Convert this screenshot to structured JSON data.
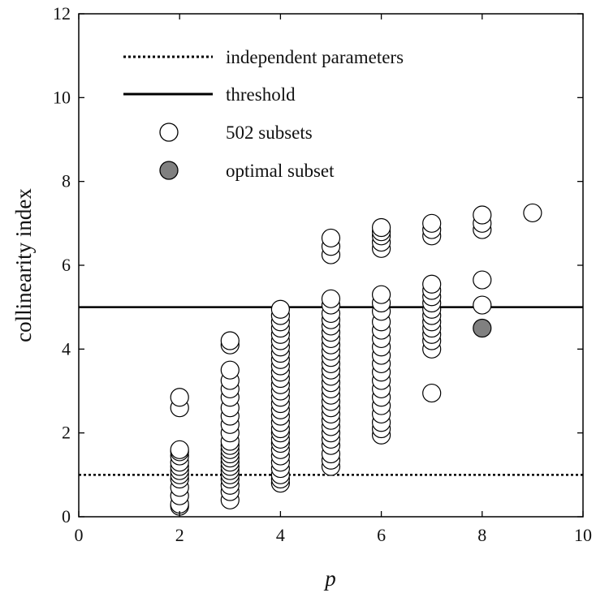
{
  "chart_data": {
    "type": "scatter",
    "xlabel": "p",
    "ylabel": "collinearity index",
    "xlim": [
      0,
      10
    ],
    "ylim": [
      0,
      12
    ],
    "xticks": [
      0,
      2,
      4,
      6,
      8,
      10
    ],
    "yticks": [
      0,
      2,
      4,
      6,
      8,
      10,
      12
    ],
    "legend_position": "top-left",
    "grid": false,
    "reference_lines": [
      {
        "name": "independent parameters",
        "y": 1,
        "style": "dotted"
      },
      {
        "name": "threshold",
        "y": 5,
        "style": "solid"
      }
    ],
    "series": [
      {
        "name": "502 subsets",
        "color": "#ffffff",
        "points": [
          [
            2,
            0.25
          ],
          [
            2,
            0.3
          ],
          [
            2,
            0.5
          ],
          [
            2,
            0.7
          ],
          [
            2,
            0.9
          ],
          [
            2,
            1.0
          ],
          [
            2,
            1.1
          ],
          [
            2,
            1.2
          ],
          [
            2,
            1.3
          ],
          [
            2,
            1.45
          ],
          [
            2,
            1.55
          ],
          [
            2,
            1.6
          ],
          [
            2,
            2.6
          ],
          [
            2,
            2.85
          ],
          [
            3,
            0.4
          ],
          [
            3,
            0.6
          ],
          [
            3,
            0.75
          ],
          [
            3,
            0.9
          ],
          [
            3,
            1.0
          ],
          [
            3,
            1.1
          ],
          [
            3,
            1.2
          ],
          [
            3,
            1.3
          ],
          [
            3,
            1.4
          ],
          [
            3,
            1.5
          ],
          [
            3,
            1.6
          ],
          [
            3,
            1.7
          ],
          [
            3,
            1.8
          ],
          [
            3,
            2.0
          ],
          [
            3,
            2.2
          ],
          [
            3,
            2.4
          ],
          [
            3,
            2.6
          ],
          [
            3,
            2.85
          ],
          [
            3,
            3.05
          ],
          [
            3,
            3.25
          ],
          [
            3,
            3.5
          ],
          [
            3,
            4.1
          ],
          [
            3,
            4.2
          ],
          [
            4,
            0.8
          ],
          [
            4,
            0.9
          ],
          [
            4,
            1.0
          ],
          [
            4,
            1.15
          ],
          [
            4,
            1.3
          ],
          [
            4,
            1.45
          ],
          [
            4,
            1.6
          ],
          [
            4,
            1.75
          ],
          [
            4,
            1.85
          ],
          [
            4,
            2.0
          ],
          [
            4,
            2.1
          ],
          [
            4,
            2.25
          ],
          [
            4,
            2.4
          ],
          [
            4,
            2.55
          ],
          [
            4,
            2.7
          ],
          [
            4,
            2.85
          ],
          [
            4,
            3.0
          ],
          [
            4,
            3.15
          ],
          [
            4,
            3.3
          ],
          [
            4,
            3.45
          ],
          [
            4,
            3.6
          ],
          [
            4,
            3.75
          ],
          [
            4,
            3.9
          ],
          [
            4,
            4.05
          ],
          [
            4,
            4.2
          ],
          [
            4,
            4.35
          ],
          [
            4,
            4.5
          ],
          [
            4,
            4.65
          ],
          [
            4,
            4.8
          ],
          [
            4,
            4.95
          ],
          [
            5,
            1.2
          ],
          [
            5,
            1.35
          ],
          [
            5,
            1.5
          ],
          [
            5,
            1.7
          ],
          [
            5,
            1.85
          ],
          [
            5,
            2.0
          ],
          [
            5,
            2.15
          ],
          [
            5,
            2.3
          ],
          [
            5,
            2.45
          ],
          [
            5,
            2.6
          ],
          [
            5,
            2.75
          ],
          [
            5,
            2.9
          ],
          [
            5,
            3.05
          ],
          [
            5,
            3.2
          ],
          [
            5,
            3.35
          ],
          [
            5,
            3.5
          ],
          [
            5,
            3.65
          ],
          [
            5,
            3.8
          ],
          [
            5,
            3.95
          ],
          [
            5,
            4.1
          ],
          [
            5,
            4.25
          ],
          [
            5,
            4.4
          ],
          [
            5,
            4.55
          ],
          [
            5,
            4.7
          ],
          [
            5,
            4.85
          ],
          [
            5,
            5.05
          ],
          [
            5,
            5.2
          ],
          [
            5,
            6.25
          ],
          [
            5,
            6.45
          ],
          [
            5,
            6.65
          ],
          [
            6,
            1.95
          ],
          [
            6,
            2.1
          ],
          [
            6,
            2.25
          ],
          [
            6,
            2.45
          ],
          [
            6,
            2.65
          ],
          [
            6,
            2.85
          ],
          [
            6,
            3.05
          ],
          [
            6,
            3.25
          ],
          [
            6,
            3.45
          ],
          [
            6,
            3.65
          ],
          [
            6,
            3.85
          ],
          [
            6,
            4.05
          ],
          [
            6,
            4.25
          ],
          [
            6,
            4.45
          ],
          [
            6,
            4.65
          ],
          [
            6,
            4.9
          ],
          [
            6,
            5.1
          ],
          [
            6,
            5.3
          ],
          [
            6,
            6.4
          ],
          [
            6,
            6.55
          ],
          [
            6,
            6.7
          ],
          [
            6,
            6.8
          ],
          [
            6,
            6.9
          ],
          [
            7,
            2.95
          ],
          [
            7,
            4.0
          ],
          [
            7,
            4.2
          ],
          [
            7,
            4.35
          ],
          [
            7,
            4.5
          ],
          [
            7,
            4.65
          ],
          [
            7,
            4.8
          ],
          [
            7,
            4.95
          ],
          [
            7,
            5.1
          ],
          [
            7,
            5.25
          ],
          [
            7,
            5.4
          ],
          [
            7,
            5.55
          ],
          [
            7,
            6.7
          ],
          [
            7,
            6.85
          ],
          [
            7,
            7.0
          ],
          [
            8,
            5.05
          ],
          [
            8,
            5.65
          ],
          [
            8,
            6.85
          ],
          [
            8,
            7.0
          ],
          [
            8,
            7.2
          ],
          [
            9,
            7.25
          ]
        ]
      },
      {
        "name": "optimal subset",
        "color": "#808080",
        "points": [
          [
            8,
            4.5
          ]
        ]
      }
    ]
  }
}
